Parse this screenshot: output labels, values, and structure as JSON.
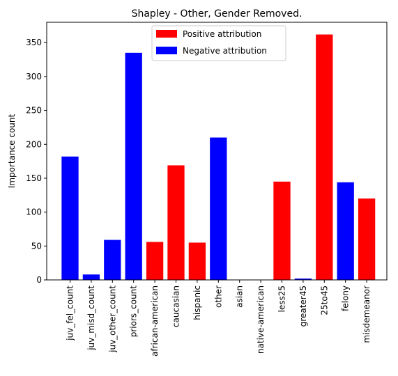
{
  "chart_data": {
    "type": "bar",
    "title": "Shapley - Other, Gender Removed.",
    "xlabel": "",
    "ylabel": "Importance count",
    "ylim": [
      0,
      380
    ],
    "yticks": [
      0,
      50,
      100,
      150,
      200,
      250,
      300,
      350
    ],
    "grid": false,
    "legend_position": "top-center",
    "legend": [
      {
        "label": "Positive attribution",
        "color": "#ff0000"
      },
      {
        "label": "Negative attribution",
        "color": "#0000ff"
      }
    ],
    "categories": [
      "juv_fel_count",
      "juv_misd_count",
      "juv_other_count",
      "priors_count",
      "african-american",
      "caucasian",
      "hispanic",
      "other",
      "asian",
      "native-american",
      "less25",
      "greater45",
      "25to45",
      "felony",
      "misdemeanor"
    ],
    "values": [
      182,
      8,
      59,
      335,
      56,
      169,
      55,
      210,
      0,
      0,
      145,
      2,
      362,
      144,
      120
    ],
    "attribution": [
      "negative",
      "negative",
      "negative",
      "negative",
      "positive",
      "positive",
      "positive",
      "negative",
      "negative",
      "negative",
      "positive",
      "negative",
      "positive",
      "negative",
      "positive"
    ]
  }
}
